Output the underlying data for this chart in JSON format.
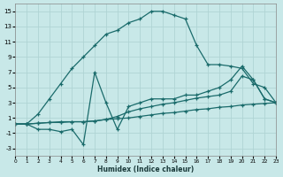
{
  "xlabel": "Humidex (Indice chaleur)",
  "bg_color": "#c8e8e8",
  "grid_color": "#b0d4d4",
  "line_color": "#1a6b6b",
  "xlim": [
    0,
    23
  ],
  "ylim": [
    -4,
    16
  ],
  "xticks": [
    0,
    1,
    2,
    3,
    4,
    5,
    6,
    7,
    8,
    9,
    10,
    11,
    12,
    13,
    14,
    15,
    16,
    17,
    18,
    19,
    20,
    21,
    22,
    23
  ],
  "yticks": [
    -3,
    -1,
    1,
    3,
    5,
    7,
    9,
    11,
    13,
    15
  ],
  "line1_x": [
    0,
    1,
    2,
    3,
    4,
    5,
    6,
    7,
    8,
    9,
    10,
    11,
    12,
    13,
    14,
    15,
    16,
    17,
    18,
    19,
    20,
    21,
    22,
    23
  ],
  "line1_y": [
    0.2,
    0.2,
    1.5,
    3.5,
    5.5,
    7.5,
    9.0,
    10.5,
    12.0,
    12.5,
    13.5,
    14.0,
    15.0,
    15.0,
    14.5,
    14.0,
    10.5,
    8.0,
    8.0,
    7.8,
    7.5,
    5.5,
    5.0,
    3.0
  ],
  "line2_x": [
    0,
    1,
    2,
    3,
    4,
    5,
    6,
    7,
    8,
    9,
    10,
    11,
    12,
    13,
    14,
    15,
    16,
    17,
    18,
    19,
    20,
    21,
    22,
    23
  ],
  "line2_y": [
    0.2,
    0.2,
    0.3,
    0.4,
    0.5,
    0.5,
    0.5,
    0.6,
    0.8,
    1.2,
    1.8,
    2.2,
    2.5,
    2.8,
    3.0,
    3.3,
    3.6,
    3.8,
    4.0,
    4.5,
    6.5,
    6.0,
    3.5,
    3.0
  ],
  "line3_x": [
    0,
    1,
    2,
    3,
    4,
    5,
    6,
    7,
    8,
    9,
    10,
    11,
    12,
    13,
    14,
    15,
    16,
    17,
    18,
    19,
    20,
    21,
    22,
    23
  ],
  "line3_y": [
    0.2,
    0.2,
    0.3,
    0.4,
    0.4,
    0.5,
    0.5,
    0.6,
    0.8,
    0.9,
    1.0,
    1.2,
    1.4,
    1.6,
    1.7,
    1.9,
    2.1,
    2.2,
    2.4,
    2.5,
    2.7,
    2.8,
    2.9,
    3.0
  ],
  "line4_x": [
    0,
    1,
    2,
    3,
    4,
    5,
    6,
    7,
    8,
    9,
    10,
    11,
    12,
    13,
    14,
    15,
    16,
    17,
    18,
    19,
    20,
    21,
    22,
    23
  ],
  "line4_y": [
    0.2,
    0.2,
    -0.5,
    -0.5,
    -0.8,
    -0.5,
    -2.5,
    7.0,
    3.0,
    -0.5,
    2.5,
    3.0,
    3.5,
    3.5,
    3.5,
    4.0,
    4.0,
    4.5,
    5.0,
    6.0,
    7.8,
    6.0,
    3.5,
    3.0
  ]
}
